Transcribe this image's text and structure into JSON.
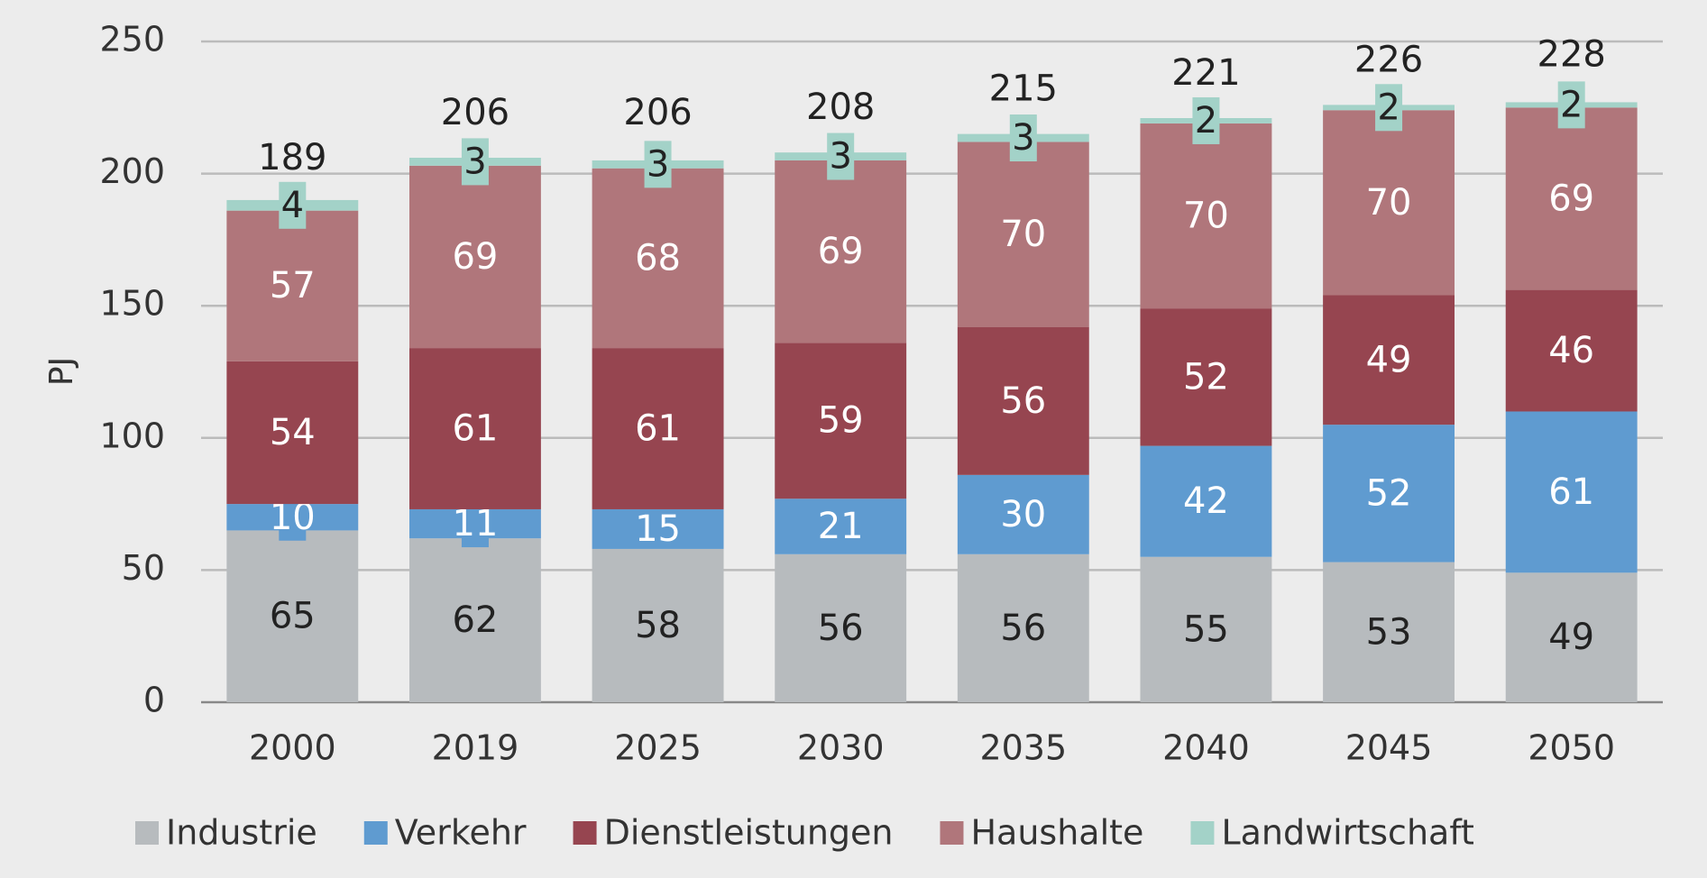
{
  "chart_data": {
    "type": "stacked_bar",
    "ylabel": "PJ",
    "categories": [
      "2000",
      "2019",
      "2025",
      "2030",
      "2035",
      "2040",
      "2045",
      "2050"
    ],
    "series": [
      {
        "name": "Industrie",
        "color": "#b7bbbe",
        "label_color": "#222222",
        "values": [
          65,
          62,
          58,
          56,
          56,
          55,
          53,
          49
        ]
      },
      {
        "name": "Verkehr",
        "color": "#5f9bd0",
        "label_color": "#ffffff",
        "values": [
          10,
          11,
          15,
          21,
          30,
          42,
          52,
          61
        ]
      },
      {
        "name": "Dienstleistungen",
        "color": "#964550",
        "label_color": "#ffffff",
        "values": [
          54,
          61,
          61,
          59,
          56,
          52,
          49,
          46
        ]
      },
      {
        "name": "Haushalte",
        "color": "#b0767b",
        "label_color": "#ffffff",
        "values": [
          57,
          69,
          68,
          69,
          70,
          70,
          70,
          69
        ]
      },
      {
        "name": "Landwirtschaft",
        "color": "#a3d2c8",
        "label_color": "#222222",
        "values": [
          4,
          3,
          3,
          3,
          3,
          2,
          2,
          2
        ]
      }
    ],
    "totals": [
      189,
      206,
      206,
      208,
      215,
      221,
      226,
      228
    ],
    "ylim": [
      0,
      250
    ],
    "yticks": [
      0,
      50,
      100,
      150,
      200,
      250
    ],
    "grid": true
  }
}
